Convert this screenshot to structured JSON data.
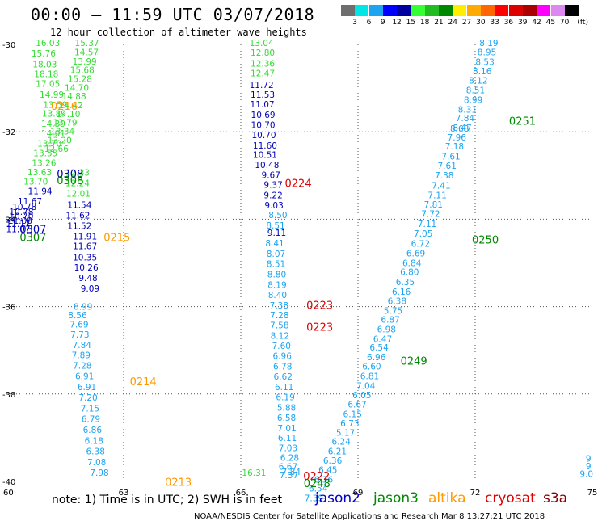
{
  "title": "00:00 – 11:59 UTC 03/07/2018",
  "subtitle": "12 hour collection of altimeter wave heights",
  "legend": {
    "unit": "(ft)",
    "colors": [
      "#6e6e6e",
      "#00e5e5",
      "#1da3f0",
      "#0000ff",
      "#0000a0",
      "#33ff33",
      "#22bb22",
      "#008800",
      "#ffee00",
      "#ffaa00",
      "#ff6600",
      "#ff0000",
      "#dd0000",
      "#aa0000",
      "#ff00ff",
      "#dd88ee",
      "#000000"
    ],
    "labels": [
      "3",
      "6",
      "9",
      "12",
      "15",
      "18",
      "21",
      "24",
      "27",
      "30",
      "33",
      "36",
      "39",
      "42",
      "45",
      "70"
    ]
  },
  "axes": {
    "x_ticks": [
      "60",
      "63",
      "66",
      "69",
      "72",
      "75"
    ],
    "y_ticks": [
      "-30",
      "-32",
      "-34",
      "-36",
      "-38",
      "-40"
    ]
  },
  "note": "note: 1) Time is in UTC; 2) SWH is in feet",
  "satellites": [
    {
      "name": "jason2",
      "color": "#0000cc"
    },
    {
      "name": "jason3",
      "color": "#008800"
    },
    {
      "name": "altika",
      "color": "#ff9900"
    },
    {
      "name": "cryosat",
      "color": "#dd0000"
    },
    {
      "name": "s3a",
      "color": "#880000"
    }
  ],
  "credit": "NOAA/NESDIS Center for Satellite Applications and Research    Mar  8 13:27:21 UTC 2018",
  "chart_data": {
    "type": "scatter",
    "xlim": [
      60,
      75
    ],
    "ylim": [
      -40,
      -30
    ],
    "grid": true,
    "series": [
      {
        "satellite": "s3a",
        "color": "#1da3f0",
        "points": [
          [
            61.96,
            -36.07,
            "8.99"
          ],
          [
            61.82,
            -36.27,
            "8.56"
          ],
          [
            61.86,
            -36.48,
            "7.69"
          ],
          [
            61.88,
            -36.71,
            "7.73"
          ],
          [
            61.93,
            -36.95,
            "7.84"
          ],
          [
            61.91,
            -37.18,
            "7.89"
          ],
          [
            61.94,
            -37.42,
            "7.28"
          ],
          [
            62.0,
            -37.66,
            "6.91"
          ],
          [
            62.06,
            -37.91,
            "6.91"
          ],
          [
            62.09,
            -38.15,
            "7.20"
          ],
          [
            62.14,
            -38.4,
            "7.15"
          ],
          [
            62.16,
            -38.64,
            "6.79"
          ],
          [
            62.2,
            -38.89,
            "6.86"
          ],
          [
            62.24,
            -39.14,
            "6.18"
          ],
          [
            62.28,
            -39.38,
            "6.38"
          ],
          [
            62.31,
            -39.63,
            "7.08"
          ],
          [
            62.38,
            -39.87,
            "7.98"
          ]
        ]
      },
      {
        "satellite": "jason2",
        "color": "#0000bb",
        "points": [
          [
            60.86,
            -33.43,
            "11.94"
          ],
          [
            60.6,
            -33.66,
            "11.67"
          ],
          [
            60.46,
            -33.79,
            "10.78"
          ],
          [
            60.38,
            -33.9,
            "10.78"
          ],
          [
            60.38,
            -34.0,
            "10.70"
          ],
          [
            60.35,
            -34.1,
            "11.08"
          ],
          [
            60.3,
            -34.18,
            "11.17"
          ],
          [
            60.3,
            -34.3,
            "11.07"
          ],
          [
            61.87,
            -33.74,
            "11.54"
          ],
          [
            61.83,
            -33.98,
            "11.62"
          ],
          [
            61.87,
            -34.22,
            "11.52"
          ],
          [
            62.01,
            -34.46,
            "11.91"
          ],
          [
            62.01,
            -34.69,
            "11.67"
          ],
          [
            62.01,
            -34.94,
            "10.35"
          ],
          [
            62.04,
            -35.18,
            "10.26"
          ],
          [
            62.09,
            -35.42,
            "9.48"
          ],
          [
            62.14,
            -35.66,
            "9.09"
          ],
          [
            66.53,
            -31.0,
            "11.72"
          ],
          [
            66.56,
            -31.22,
            "11.53"
          ],
          [
            66.55,
            -31.44,
            "11.07"
          ],
          [
            66.57,
            -31.68,
            "10.69"
          ],
          [
            66.57,
            -31.91,
            "10.70"
          ],
          [
            66.59,
            -32.14,
            "10.70"
          ],
          [
            66.62,
            -32.38,
            "11.60"
          ],
          [
            66.62,
            -32.6,
            "10.51"
          ],
          [
            66.67,
            -32.83,
            "10.48"
          ],
          [
            66.77,
            -33.06,
            "9.67"
          ],
          [
            66.83,
            -33.28,
            "9.37"
          ],
          [
            66.83,
            -33.52,
            "9.22"
          ],
          [
            66.85,
            -33.75,
            "9.03"
          ],
          [
            66.92,
            -34.38,
            "9.11"
          ]
        ]
      },
      {
        "satellite": "jason3",
        "color": "#33dd33",
        "points": [
          [
            61.06,
            -30.04,
            "16.03"
          ],
          [
            60.95,
            -30.28,
            "15.76"
          ],
          [
            60.98,
            -30.53,
            "18.03"
          ],
          [
            61.02,
            -30.75,
            "18.18"
          ],
          [
            61.06,
            -30.97,
            "17.05"
          ],
          [
            61.16,
            -31.22,
            "14.99"
          ],
          [
            61.25,
            -31.45,
            "13.59"
          ],
          [
            61.22,
            -31.65,
            "13.89"
          ],
          [
            61.2,
            -31.89,
            "14.39"
          ],
          [
            61.2,
            -32.11,
            "14.01"
          ],
          [
            61.1,
            -32.34,
            "13.70"
          ],
          [
            61.0,
            -32.56,
            "13.55"
          ],
          [
            60.96,
            -32.78,
            "13.26"
          ],
          [
            60.85,
            -32.99,
            "13.63"
          ],
          [
            60.75,
            -33.21,
            "13.70"
          ],
          [
            62.06,
            -30.04,
            "15.37"
          ],
          [
            62.05,
            -30.25,
            "14.57"
          ],
          [
            62.0,
            -30.46,
            "13.99"
          ],
          [
            61.94,
            -30.66,
            "15.68"
          ],
          [
            61.88,
            -30.86,
            "15.28"
          ],
          [
            61.8,
            -31.06,
            "14.70"
          ],
          [
            61.73,
            -31.26,
            "14.88"
          ],
          [
            61.65,
            -31.46,
            "14.42"
          ],
          [
            61.58,
            -31.66,
            "14.10"
          ],
          [
            61.5,
            -31.86,
            "13.79"
          ],
          [
            61.43,
            -32.06,
            "13.34"
          ],
          [
            61.36,
            -32.26,
            "13.20"
          ],
          [
            61.28,
            -32.46,
            "12.66"
          ],
          [
            61.82,
            -33.0,
            "12.33"
          ],
          [
            61.82,
            -33.24,
            "12.24"
          ],
          [
            61.84,
            -33.48,
            "12.01"
          ],
          [
            66.53,
            -30.04,
            "13.04"
          ],
          [
            66.56,
            -30.26,
            "12.80"
          ],
          [
            66.56,
            -30.51,
            "12.36"
          ],
          [
            66.56,
            -30.73,
            "12.47"
          ],
          [
            66.34,
            -39.87,
            "16.31"
          ]
        ]
      },
      {
        "satellite": "cryosat",
        "color": "#1da3f0",
        "points": [
          [
            66.95,
            -33.97,
            "8.50"
          ],
          [
            66.89,
            -34.21,
            "8.51"
          ],
          [
            66.87,
            -34.62,
            "8.41"
          ],
          [
            66.9,
            -34.86,
            "8.07"
          ],
          [
            66.9,
            -35.09,
            "8.51"
          ],
          [
            66.92,
            -35.33,
            "8.80"
          ],
          [
            66.93,
            -35.57,
            "8.19"
          ],
          [
            66.94,
            -35.8,
            "8.40"
          ],
          [
            66.98,
            -36.04,
            "7.38"
          ],
          [
            66.99,
            -36.27,
            "7.28"
          ],
          [
            66.99,
            -36.5,
            "7.58"
          ],
          [
            67.0,
            -36.74,
            "8.12"
          ],
          [
            67.04,
            -36.97,
            "7.60"
          ],
          [
            67.06,
            -37.2,
            "6.96"
          ],
          [
            67.07,
            -37.44,
            "6.78"
          ],
          [
            67.08,
            -37.67,
            "6.62"
          ],
          [
            67.11,
            -37.91,
            "6.11"
          ],
          [
            67.14,
            -38.14,
            "6.19"
          ],
          [
            67.17,
            -38.38,
            "5.88"
          ],
          [
            67.17,
            -38.61,
            "6.58"
          ],
          [
            67.18,
            -38.85,
            "7.01"
          ],
          [
            67.19,
            -39.08,
            "6.11"
          ],
          [
            67.21,
            -39.31,
            "7.03"
          ],
          [
            67.25,
            -39.53,
            "6.28"
          ],
          [
            67.21,
            -39.73,
            "6.67"
          ],
          [
            67.29,
            -39.85,
            "7.84"
          ],
          [
            67.23,
            -39.93,
            "7.37"
          ],
          [
            72.35,
            -30.04,
            "8.19"
          ],
          [
            72.3,
            -30.25,
            "8.95"
          ],
          [
            72.25,
            -30.47,
            "8.53"
          ],
          [
            72.18,
            -30.68,
            "8.16"
          ],
          [
            72.08,
            -30.9,
            "8.12"
          ],
          [
            72.01,
            -31.12,
            "8.51"
          ],
          [
            71.95,
            -31.34,
            "8.99"
          ],
          [
            71.8,
            -31.56,
            "8.31"
          ],
          [
            71.74,
            -31.76,
            "7.84"
          ],
          [
            71.67,
            -31.98,
            "8.47"
          ],
          [
            71.6,
            -32.0,
            "8.68"
          ],
          [
            71.53,
            -32.2,
            "7.96"
          ],
          [
            71.47,
            -32.4,
            "7.18"
          ],
          [
            71.38,
            -32.63,
            "7.61"
          ],
          [
            71.28,
            -32.85,
            "7.61"
          ],
          [
            71.21,
            -33.07,
            "7.38"
          ],
          [
            71.13,
            -33.3,
            "7.41"
          ],
          [
            71.03,
            -33.52,
            "7.11"
          ],
          [
            70.93,
            -33.73,
            "7.81"
          ],
          [
            70.86,
            -33.95,
            "7.72"
          ],
          [
            70.77,
            -34.18,
            "7.11"
          ],
          [
            70.67,
            -34.4,
            "7.05"
          ],
          [
            70.6,
            -34.63,
            "6.72"
          ],
          [
            70.48,
            -34.85,
            "6.69"
          ],
          [
            70.38,
            -35.07,
            "6.84"
          ],
          [
            70.32,
            -35.28,
            "6.80"
          ],
          [
            70.21,
            -35.51,
            "6.35"
          ],
          [
            70.11,
            -35.73,
            "6.16"
          ],
          [
            70.0,
            -35.94,
            "6.38"
          ],
          [
            69.9,
            -36.16,
            "5.75"
          ],
          [
            69.83,
            -36.37,
            "6.87"
          ],
          [
            69.73,
            -36.59,
            "6.98"
          ],
          [
            69.63,
            -36.81,
            "6.47"
          ],
          [
            69.54,
            -37.01,
            "6.54"
          ],
          [
            69.47,
            -37.23,
            "6.96"
          ],
          [
            69.35,
            -37.44,
            "6.60"
          ],
          [
            69.3,
            -37.66,
            "6.81"
          ],
          [
            69.2,
            -37.88,
            "7.04"
          ],
          [
            69.1,
            -38.1,
            "6.05"
          ],
          [
            68.98,
            -38.31,
            "6.67"
          ],
          [
            68.86,
            -38.53,
            "6.15"
          ],
          [
            68.79,
            -38.74,
            "6.73"
          ],
          [
            68.68,
            -38.96,
            "5.17"
          ],
          [
            68.57,
            -39.16,
            "6.24"
          ],
          [
            68.47,
            -39.38,
            "6.21"
          ],
          [
            68.35,
            -39.59,
            "6.36"
          ],
          [
            68.23,
            -39.81,
            "6.45"
          ],
          [
            68.12,
            -40.03,
            "6.36"
          ],
          [
            67.98,
            -40.23,
            "6.54"
          ],
          [
            67.87,
            -40.45,
            "7.39"
          ]
        ]
      },
      {
        "satellite": "overflow",
        "color": "#1da3f0",
        "points": [
          [
            74.9,
            -39.55,
            "9"
          ],
          [
            74.9,
            -39.72,
            "9"
          ],
          [
            74.85,
            -39.9,
            "9.0"
          ]
        ]
      }
    ],
    "time_labels": [
      {
        "x": 61.48,
        "y": -31.5,
        "text": "0216",
        "color": "#ff9900"
      },
      {
        "x": 61.63,
        "y": -33.05,
        "text": "0308",
        "color": "#0000bb"
      },
      {
        "x": 61.63,
        "y": -33.2,
        "text": "0308",
        "color": "#008800"
      },
      {
        "x": 60.68,
        "y": -34.32,
        "text": "0307",
        "color": "#0000bb"
      },
      {
        "x": 60.68,
        "y": -34.5,
        "text": "0307",
        "color": "#008800"
      },
      {
        "x": 62.83,
        "y": -34.5,
        "text": "0215",
        "color": "#ff9900"
      },
      {
        "x": 67.47,
        "y": -33.26,
        "text": "0224",
        "color": "#dd0000"
      },
      {
        "x": 68.02,
        "y": -36.05,
        "text": "0223",
        "color": "#dd0000"
      },
      {
        "x": 68.02,
        "y": -36.55,
        "text": "0223",
        "color": "#dd0000"
      },
      {
        "x": 63.5,
        "y": -37.8,
        "text": "0214",
        "color": "#ff9900"
      },
      {
        "x": 64.4,
        "y": -40.1,
        "text": "0213",
        "color": "#ff9900"
      },
      {
        "x": 67.94,
        "y": -39.96,
        "text": "0222",
        "color": "#dd0000"
      },
      {
        "x": 67.95,
        "y": -40.13,
        "text": "0248",
        "color": "#008800"
      },
      {
        "x": 73.21,
        "y": -31.84,
        "text": "0251",
        "color": "#008800"
      },
      {
        "x": 72.26,
        "y": -34.56,
        "text": "0250",
        "color": "#008800"
      },
      {
        "x": 70.43,
        "y": -37.33,
        "text": "0249",
        "color": "#008800"
      }
    ]
  }
}
